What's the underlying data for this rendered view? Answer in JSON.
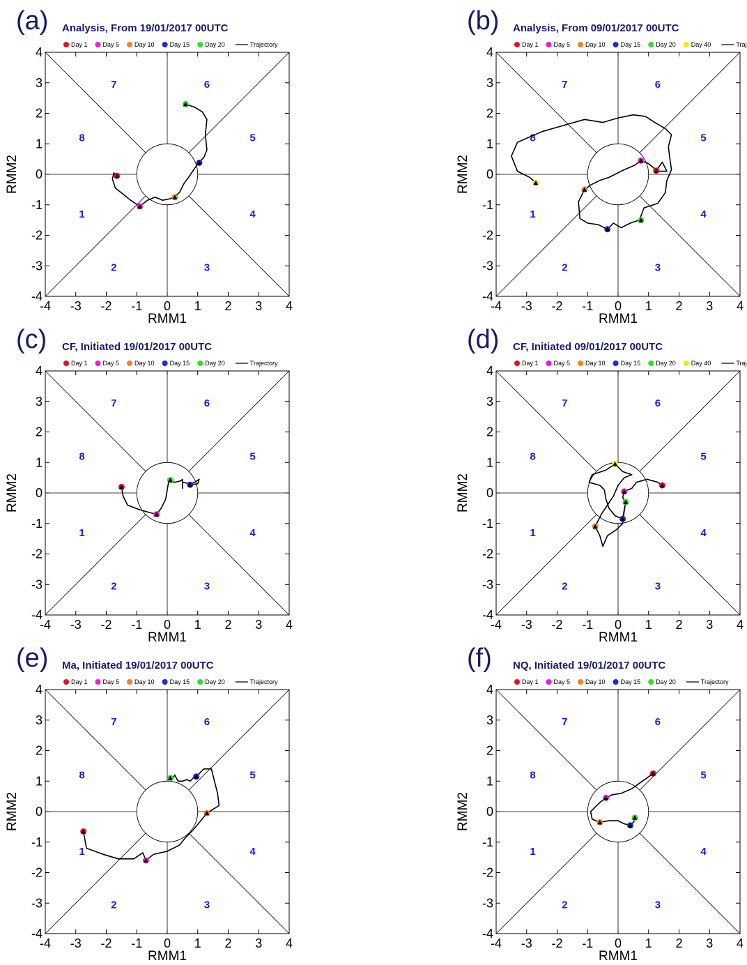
{
  "chart_data": [
    {
      "panel": "(a)",
      "type": "scatter",
      "title": "Analysis, From 19/01/2017 00UTC",
      "xlabel": "RMM1",
      "ylabel": "RMM2",
      "xlim": [
        -4,
        4
      ],
      "ylim": [
        -4,
        4
      ],
      "ticks": [
        "-4",
        "-3",
        "-2",
        "-1",
        "0",
        "1",
        "2",
        "3",
        "4"
      ],
      "phase_labels": [
        "1",
        "2",
        "3",
        "4",
        "5",
        "6",
        "7",
        "8"
      ],
      "legend": [
        {
          "label": "Day 1",
          "color": "#e8101f"
        },
        {
          "label": "Day 5",
          "color": "#ee19e0"
        },
        {
          "label": "Day 10",
          "color": "#f58220"
        },
        {
          "label": "Day 15",
          "color": "#1f2bd6"
        },
        {
          "label": "Day 20",
          "color": "#2fe02f"
        },
        {
          "label": "Trajectory",
          "color": "#000000"
        }
      ],
      "trajectory": [
        [
          -1.65,
          -0.05
        ],
        [
          -1.75,
          0.05
        ],
        [
          -1.8,
          -0.15
        ],
        [
          -1.7,
          -0.45
        ],
        [
          -1.45,
          -0.65
        ],
        [
          -1.2,
          -0.85
        ],
        [
          -0.9,
          -1.05
        ],
        [
          -0.65,
          -0.85
        ],
        [
          -0.4,
          -0.75
        ],
        [
          -0.15,
          -0.85
        ],
        [
          0.1,
          -0.8
        ],
        [
          0.3,
          -0.7
        ],
        [
          0.2,
          -0.75
        ],
        [
          0.4,
          -0.6
        ],
        [
          0.55,
          -0.3
        ],
        [
          0.7,
          -0.1
        ],
        [
          0.9,
          0.2
        ],
        [
          1.05,
          0.4
        ],
        [
          1.2,
          0.55
        ],
        [
          1.3,
          0.8
        ],
        [
          1.25,
          1.3
        ],
        [
          1.3,
          1.8
        ],
        [
          1.15,
          2.05
        ],
        [
          0.9,
          2.2
        ],
        [
          0.6,
          2.3
        ]
      ],
      "markers": [
        {
          "label": "Day 1",
          "x": -1.65,
          "y": -0.05
        },
        {
          "label": "Day 5",
          "x": -0.9,
          "y": -1.05
        },
        {
          "label": "Day 10",
          "x": 0.25,
          "y": -0.75
        },
        {
          "label": "Day 15",
          "x": 1.05,
          "y": 0.38
        },
        {
          "label": "Day 20",
          "x": 0.6,
          "y": 2.3
        }
      ]
    },
    {
      "panel": "(b)",
      "type": "scatter",
      "title": "Analysis, From 09/01/2017 00UTC",
      "xlabel": "RMM1",
      "ylabel": "RMM2",
      "xlim": [
        -4,
        4
      ],
      "ylim": [
        -4,
        4
      ],
      "ticks": [
        "-4",
        "-3",
        "-2",
        "-1",
        "0",
        "1",
        "2",
        "3",
        "4"
      ],
      "phase_labels": [
        "1",
        "2",
        "3",
        "4",
        "5",
        "6",
        "7",
        "8"
      ],
      "legend": [
        {
          "label": "Day 1",
          "color": "#e8101f"
        },
        {
          "label": "Day 5",
          "color": "#ee19e0"
        },
        {
          "label": "Day 10",
          "color": "#f58220"
        },
        {
          "label": "Day 15",
          "color": "#1f2bd6"
        },
        {
          "label": "Day 20",
          "color": "#2fe02f"
        },
        {
          "label": "Day 40",
          "color": "#f2ea10"
        },
        {
          "label": "Trajectory",
          "color": "#000000"
        }
      ],
      "trajectory": [
        [
          1.25,
          0.12
        ],
        [
          1.45,
          0.4
        ],
        [
          1.6,
          0.1
        ],
        [
          1.3,
          0.1
        ],
        [
          1.0,
          0.35
        ],
        [
          0.75,
          0.45
        ],
        [
          0.55,
          0.3
        ],
        [
          0.2,
          0.15
        ],
        [
          -0.1,
          0.0
        ],
        [
          -0.3,
          -0.1
        ],
        [
          -0.6,
          -0.2
        ],
        [
          -0.9,
          -0.35
        ],
        [
          -1.1,
          -0.5
        ],
        [
          -1.3,
          -0.9
        ],
        [
          -1.25,
          -1.45
        ],
        [
          -1.0,
          -1.6
        ],
        [
          -0.65,
          -1.65
        ],
        [
          -0.35,
          -1.8
        ],
        [
          -0.15,
          -1.6
        ],
        [
          0.1,
          -1.75
        ],
        [
          0.4,
          -1.6
        ],
        [
          0.7,
          -1.5
        ],
        [
          0.85,
          -1.1
        ],
        [
          1.3,
          -0.95
        ],
        [
          1.55,
          -0.6
        ],
        [
          1.6,
          -0.2
        ],
        [
          1.75,
          0.15
        ],
        [
          1.7,
          0.5
        ],
        [
          1.65,
          0.9
        ],
        [
          1.75,
          1.3
        ],
        [
          1.55,
          1.5
        ],
        [
          1.2,
          1.7
        ],
        [
          0.9,
          1.9
        ],
        [
          0.5,
          1.95
        ],
        [
          0.0,
          1.85
        ],
        [
          -0.5,
          1.7
        ],
        [
          -1.1,
          1.8
        ],
        [
          -1.8,
          1.6
        ],
        [
          -2.5,
          1.4
        ],
        [
          -3.3,
          1.05
        ],
        [
          -3.5,
          0.6
        ],
        [
          -3.3,
          0.1
        ],
        [
          -2.9,
          -0.1
        ],
        [
          -2.7,
          -0.28
        ]
      ],
      "markers": [
        {
          "label": "Day 1",
          "x": 1.25,
          "y": 0.12
        },
        {
          "label": "Day 5",
          "x": 0.75,
          "y": 0.45
        },
        {
          "label": "Day 10",
          "x": -1.1,
          "y": -0.5
        },
        {
          "label": "Day 15",
          "x": -0.35,
          "y": -1.8
        },
        {
          "label": "Day 20",
          "x": 0.75,
          "y": -1.5
        },
        {
          "label": "Day 40",
          "x": -2.7,
          "y": -0.28
        }
      ]
    },
    {
      "panel": "(c)",
      "type": "scatter",
      "title": "CF,  Initiated 19/01/2017 00UTC",
      "xlabel": "RMM1",
      "ylabel": "RMM2",
      "xlim": [
        -4,
        4
      ],
      "ylim": [
        -4,
        4
      ],
      "ticks": [
        "-4",
        "-3",
        "-2",
        "-1",
        "0",
        "1",
        "2",
        "3",
        "4"
      ],
      "phase_labels": [
        "1",
        "2",
        "3",
        "4",
        "5",
        "6",
        "7",
        "8"
      ],
      "legend": [
        {
          "label": "Day 1",
          "color": "#e8101f"
        },
        {
          "label": "Day 5",
          "color": "#ee19e0"
        },
        {
          "label": "Day 10",
          "color": "#f58220"
        },
        {
          "label": "Day 15",
          "color": "#1f2bd6"
        },
        {
          "label": "Day 20",
          "color": "#2fe02f"
        },
        {
          "label": "Trajectory",
          "color": "#000000"
        }
      ],
      "trajectory": [
        [
          -1.5,
          0.2
        ],
        [
          -1.45,
          -0.1
        ],
        [
          -1.3,
          -0.4
        ],
        [
          -0.9,
          -0.55
        ],
        [
          -0.55,
          -0.65
        ],
        [
          -0.35,
          -0.7
        ],
        [
          -0.2,
          -0.5
        ],
        [
          -0.05,
          -0.2
        ],
        [
          0.0,
          0.1
        ],
        [
          0.05,
          0.4
        ],
        [
          0.25,
          0.35
        ],
        [
          0.45,
          0.4
        ],
        [
          0.5,
          0.45
        ],
        [
          0.5,
          0.15
        ],
        [
          0.5,
          0.35
        ],
        [
          0.75,
          0.3
        ],
        [
          0.9,
          0.35
        ],
        [
          1.05,
          0.45
        ],
        [
          1.0,
          0.3
        ],
        [
          0.75,
          0.27
        ]
      ],
      "markers": [
        {
          "label": "Day 1",
          "x": -1.5,
          "y": 0.2
        },
        {
          "label": "Day 5",
          "x": -0.35,
          "y": -0.7
        },
        {
          "label": "Day 10",
          "x": 0.1,
          "y": 0.42
        },
        {
          "label": "Day 15",
          "x": 0.75,
          "y": 0.27
        },
        {
          "label": "Day 20",
          "x": 0.1,
          "y": 0.42
        }
      ]
    },
    {
      "panel": "(d)",
      "type": "scatter",
      "title": "CF, Initiated 09/01/2017 00UTC",
      "xlabel": "RMM1",
      "ylabel": "RMM2",
      "xlim": [
        -4,
        4
      ],
      "ylim": [
        -4,
        4
      ],
      "ticks": [
        "-4",
        "-3",
        "-2",
        "-1",
        "0",
        "1",
        "2",
        "3",
        "4"
      ],
      "phase_labels": [
        "1",
        "2",
        "3",
        "4",
        "5",
        "6",
        "7",
        "8"
      ],
      "legend": [
        {
          "label": "Day 1",
          "color": "#e8101f"
        },
        {
          "label": "Day 5",
          "color": "#ee19e0"
        },
        {
          "label": "Day 10",
          "color": "#f58220"
        },
        {
          "label": "Day 15",
          "color": "#1f2bd6"
        },
        {
          "label": "Day 20",
          "color": "#2fe02f"
        },
        {
          "label": "Day 40",
          "color": "#f2ea10"
        },
        {
          "label": "Trajectory",
          "color": "#000000"
        }
      ],
      "trajectory": [
        [
          1.45,
          0.25
        ],
        [
          1.3,
          0.35
        ],
        [
          0.95,
          0.45
        ],
        [
          0.6,
          0.35
        ],
        [
          0.45,
          0.15
        ],
        [
          0.2,
          0.05
        ],
        [
          0.15,
          -0.15
        ],
        [
          0.25,
          -0.3
        ],
        [
          0.2,
          -0.55
        ],
        [
          0.15,
          -0.85
        ],
        [
          -0.1,
          -0.75
        ],
        [
          -0.3,
          -0.5
        ],
        [
          -0.4,
          -0.2
        ],
        [
          -0.45,
          0.1
        ],
        [
          -0.6,
          0.25
        ],
        [
          -0.95,
          0.35
        ],
        [
          -0.85,
          0.6
        ],
        [
          -0.4,
          0.75
        ],
        [
          -0.1,
          0.95
        ],
        [
          0.15,
          0.7
        ],
        [
          0.45,
          0.6
        ],
        [
          0.2,
          0.5
        ],
        [
          0.0,
          0.25
        ],
        [
          -0.15,
          -0.1
        ],
        [
          -0.35,
          -0.4
        ],
        [
          -0.55,
          -0.7
        ],
        [
          -0.75,
          -1.1
        ],
        [
          -0.6,
          -1.4
        ],
        [
          -0.5,
          -1.75
        ],
        [
          -0.35,
          -1.4
        ],
        [
          -0.05,
          -1.2
        ],
        [
          0.15,
          -1.0
        ],
        [
          0.2,
          -0.6
        ],
        [
          0.25,
          -0.3
        ]
      ],
      "markers": [
        {
          "label": "Day 1",
          "x": 1.45,
          "y": 0.25
        },
        {
          "label": "Day 5",
          "x": 0.2,
          "y": 0.05
        },
        {
          "label": "Day 10",
          "x": -0.75,
          "y": -1.1
        },
        {
          "label": "Day 15",
          "x": 0.15,
          "y": -0.85
        },
        {
          "label": "Day 20",
          "x": 0.25,
          "y": -0.3
        },
        {
          "label": "Day 40",
          "x": -0.1,
          "y": 0.95
        }
      ]
    },
    {
      "panel": "(e)",
      "type": "scatter",
      "title": "Ma, Initiated  19/01/2017 00UTC",
      "xlabel": "RMM1",
      "ylabel": "RMM2",
      "xlim": [
        -4,
        4
      ],
      "ylim": [
        -4,
        4
      ],
      "ticks": [
        "-4",
        "-3",
        "-2",
        "-1",
        "0",
        "1",
        "2",
        "3",
        "4"
      ],
      "phase_labels": [
        "1",
        "2",
        "3",
        "4",
        "5",
        "6",
        "7",
        "8"
      ],
      "legend": [
        {
          "label": "Day 1",
          "color": "#e8101f"
        },
        {
          "label": "Day 5",
          "color": "#ee19e0"
        },
        {
          "label": "Day 10",
          "color": "#f58220"
        },
        {
          "label": "Day 15",
          "color": "#1f2bd6"
        },
        {
          "label": "Day 20",
          "color": "#2fe02f"
        },
        {
          "label": "Trajectory",
          "color": "#000000"
        }
      ],
      "trajectory": [
        [
          -2.75,
          -0.65
        ],
        [
          -2.65,
          -1.2
        ],
        [
          -2.1,
          -1.4
        ],
        [
          -1.6,
          -1.55
        ],
        [
          -1.1,
          -1.55
        ],
        [
          -0.8,
          -1.35
        ],
        [
          -0.7,
          -1.6
        ],
        [
          -0.45,
          -1.4
        ],
        [
          0.0,
          -1.3
        ],
        [
          0.4,
          -1.1
        ],
        [
          0.6,
          -0.85
        ],
        [
          0.85,
          -0.6
        ],
        [
          1.1,
          -0.3
        ],
        [
          1.3,
          -0.05
        ],
        [
          1.7,
          0.2
        ],
        [
          1.65,
          0.6
        ],
        [
          1.55,
          1.0
        ],
        [
          1.45,
          1.4
        ],
        [
          1.2,
          1.4
        ],
        [
          1.0,
          1.2
        ],
        [
          0.9,
          1.15
        ],
        [
          0.75,
          1.0
        ],
        [
          0.65,
          1.05
        ],
        [
          0.5,
          1.0
        ],
        [
          0.35,
          1.0
        ],
        [
          0.25,
          1.2
        ],
        [
          0.15,
          1.05
        ],
        [
          0.05,
          1.1
        ]
      ],
      "markers": [
        {
          "label": "Day 1",
          "x": -2.75,
          "y": -0.65
        },
        {
          "label": "Day 5",
          "x": -0.7,
          "y": -1.6
        },
        {
          "label": "Day 10",
          "x": 1.3,
          "y": -0.05
        },
        {
          "label": "Day 15",
          "x": 0.95,
          "y": 1.15
        },
        {
          "label": "Day 20",
          "x": 0.1,
          "y": 1.1
        }
      ]
    },
    {
      "panel": "(f)",
      "type": "scatter",
      "title": "NQ, Initiated 19/01/2017 00UTC",
      "xlabel": "RMM1",
      "ylabel": "RMM2",
      "xlim": [
        -4,
        4
      ],
      "ylim": [
        -4,
        4
      ],
      "ticks": [
        "-4",
        "-3",
        "-2",
        "-1",
        "0",
        "1",
        "2",
        "3",
        "4"
      ],
      "phase_labels": [
        "1",
        "2",
        "3",
        "4",
        "5",
        "6",
        "7",
        "8"
      ],
      "legend": [
        {
          "label": "Day 1",
          "color": "#e8101f"
        },
        {
          "label": "Day 5",
          "color": "#ee19e0"
        },
        {
          "label": "Day 10",
          "color": "#f58220"
        },
        {
          "label": "Day 15",
          "color": "#1f2bd6"
        },
        {
          "label": "Day 20",
          "color": "#2fe02f"
        },
        {
          "label": "Trajectory",
          "color": "#000000"
        }
      ],
      "trajectory": [
        [
          1.15,
          1.25
        ],
        [
          0.8,
          1.0
        ],
        [
          0.45,
          0.75
        ],
        [
          0.1,
          0.6
        ],
        [
          -0.2,
          0.55
        ],
        [
          -0.4,
          0.45
        ],
        [
          -0.6,
          0.3
        ],
        [
          -0.9,
          0.0
        ],
        [
          -0.85,
          -0.25
        ],
        [
          -0.6,
          -0.35
        ],
        [
          -0.3,
          -0.3
        ],
        [
          0.0,
          -0.3
        ],
        [
          0.2,
          -0.4
        ],
        [
          0.4,
          -0.45
        ],
        [
          0.5,
          -0.35
        ],
        [
          0.6,
          -0.2
        ],
        [
          0.55,
          -0.2
        ]
      ],
      "markers": [
        {
          "label": "Day 1",
          "x": 1.15,
          "y": 1.25
        },
        {
          "label": "Day 5",
          "x": -0.4,
          "y": 0.45
        },
        {
          "label": "Day 10",
          "x": -0.6,
          "y": -0.35
        },
        {
          "label": "Day 15",
          "x": 0.4,
          "y": -0.45
        },
        {
          "label": "Day 20",
          "x": 0.55,
          "y": -0.2
        }
      ]
    }
  ]
}
